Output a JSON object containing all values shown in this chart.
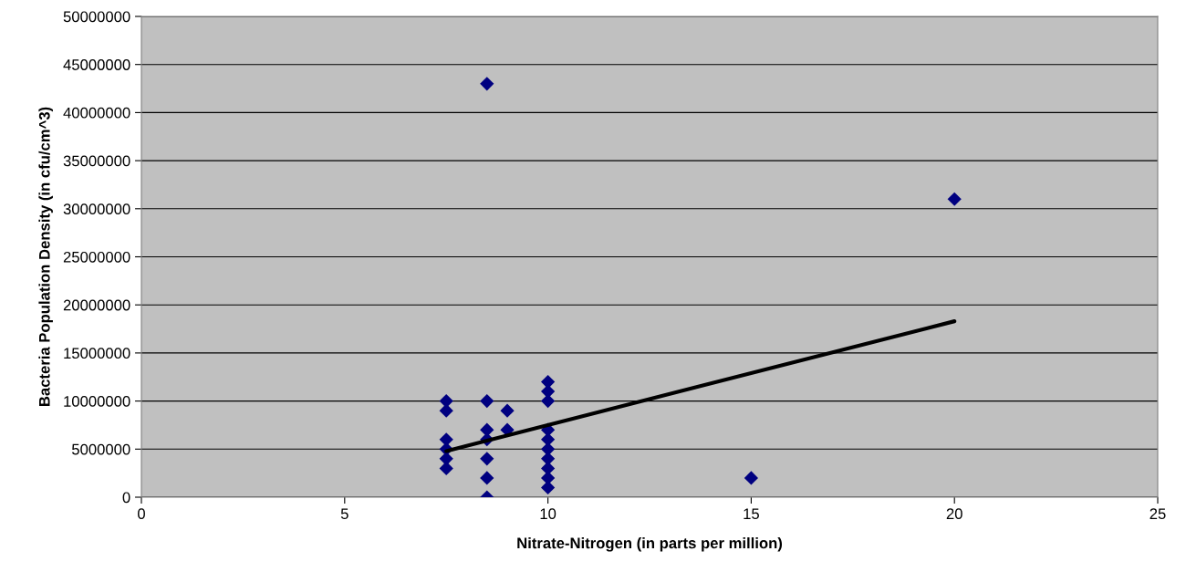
{
  "chart_data": {
    "type": "scatter",
    "xlabel": "Nitrate-Nitrogen (in parts per million)",
    "ylabel": "Bacteria Population Density (in cfu/cm^3)",
    "xlim": [
      0,
      25
    ],
    "xticks": [
      0,
      5,
      10,
      15,
      20,
      25
    ],
    "ylim": [
      0,
      50000000
    ],
    "yticks": [
      0,
      5000000,
      10000000,
      15000000,
      20000000,
      25000000,
      30000000,
      35000000,
      40000000,
      45000000,
      50000000
    ],
    "grid": "y",
    "series": [
      {
        "marker": "diamond",
        "color": "#000080",
        "x": [
          7.5,
          7.5,
          7.5,
          7.5,
          7.5,
          7.5,
          8.5,
          8.5,
          8.5,
          8.5,
          8.5,
          8.5,
          8.5,
          9,
          9,
          10,
          10,
          10,
          10,
          10,
          10,
          10,
          10,
          10,
          10,
          15,
          20
        ],
        "values": [
          10000000,
          9000000,
          6000000,
          5000000,
          4000000,
          3000000,
          43000000,
          10000000,
          7000000,
          6000000,
          4000000,
          2000000,
          0,
          9000000,
          7000000,
          12000000,
          11000000,
          10000000,
          7000000,
          6000000,
          5000000,
          4000000,
          3000000,
          2000000,
          1000000,
          2000000,
          31000000
        ]
      },
      {
        "type": "line",
        "marker": "none",
        "color": "#000000",
        "x": [
          7.5,
          20
        ],
        "values": [
          4800000,
          18300000
        ]
      }
    ]
  }
}
